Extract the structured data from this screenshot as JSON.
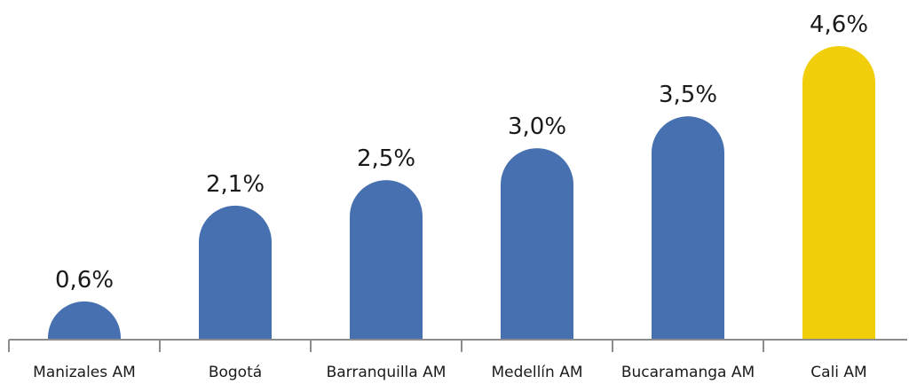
{
  "chart_data": {
    "type": "bar",
    "categories": [
      "Manizales AM",
      "Bogotá",
      "Barranquilla AM",
      "Medellín AM",
      "Bucaramanga AM",
      "Cali AM"
    ],
    "values": [
      0.6,
      2.1,
      2.5,
      3.0,
      3.5,
      4.6
    ],
    "value_labels": [
      "0,6%",
      "2,1%",
      "2,5%",
      "3,0%",
      "3,5%",
      "4,6%"
    ],
    "ylim": [
      0,
      4.6
    ],
    "grid": false,
    "legend": "none",
    "colors": {
      "default": "#4670B0",
      "highlight": "#F0CE0A",
      "axis": "#8C8C8C"
    },
    "highlight_category": "Cali AM"
  }
}
